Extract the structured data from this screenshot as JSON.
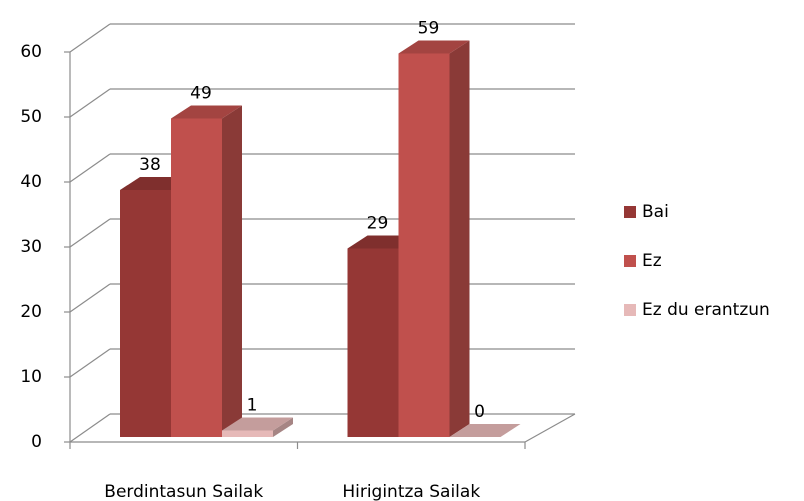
{
  "chart_data": {
    "type": "bar3d",
    "categories": [
      "Berdintasun Sailak",
      "Hirigintza Sailak"
    ],
    "series": [
      {
        "name": "Bai",
        "color": "#953735",
        "values": [
          38,
          29
        ]
      },
      {
        "name": "Ez",
        "color": "#c0504d",
        "values": [
          49,
          59
        ]
      },
      {
        "name": "Ez du erantzun",
        "color": "#e6b9b8",
        "values": [
          1,
          0
        ]
      }
    ],
    "ylim": [
      0,
      60
    ],
    "yticks": [
      0,
      10,
      20,
      30,
      40,
      50,
      60
    ],
    "grid": true,
    "legend": "right"
  }
}
